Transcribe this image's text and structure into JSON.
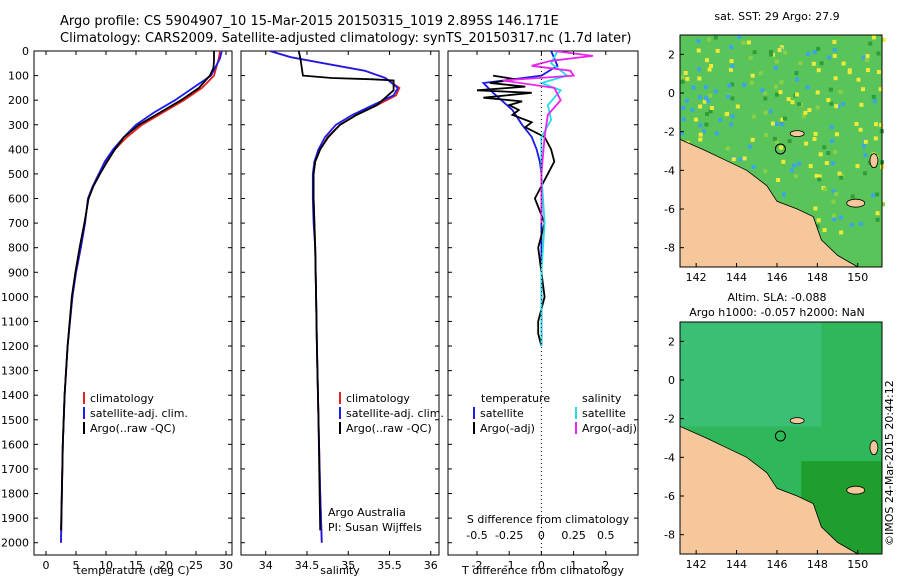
{
  "header": {
    "line1": "Argo profile: CS 5904907_10 15-Mar-2015 20150315_1019 2.895S 146.171E",
    "line2": "Climatology: CARS2009. Satellite-adjusted climatology: synTS_20150317.nc (1.7d later)"
  },
  "colors": {
    "climatology": "#e8211e",
    "satellite": "#1a1aee",
    "argo": "#000000",
    "sal_satellite": "#22dde8",
    "sal_argo": "#ee22ee",
    "land": "#f5c79a"
  },
  "depth_ticks": [
    "0",
    "100",
    "200",
    "300",
    "400",
    "500",
    "600",
    "700",
    "800",
    "900",
    "1000",
    "1100",
    "1200",
    "1300",
    "1400",
    "1500",
    "1600",
    "1700",
    "1800",
    "1900",
    "2000"
  ],
  "legend": {
    "climatology": "climatology",
    "satellite_adj": "satellite-adj. clim.",
    "argo": "Argo(..raw -QC)"
  },
  "panel3_legend": {
    "temperature": "temperature",
    "salinity": "salinity",
    "satellite_t": "satellite",
    "argo_t": "Argo(-adj)",
    "satellite_s": "satellite",
    "argo_s": "Argo(-adj)"
  },
  "credit": {
    "line1": "Argo Australia",
    "line2": "PI: Susan Wijffels"
  },
  "map_top": {
    "title": "sat. SST: 29 Argo: 27.9",
    "xticks": [
      "142",
      "144",
      "146",
      "148",
      "150"
    ],
    "yticks": [
      "2",
      "0",
      "-2",
      "-4",
      "-6",
      "-8"
    ]
  },
  "map_bottom": {
    "title1": "Altim. SLA: -0.088",
    "title2": "Argo h1000: -0.057 h2000: NaN",
    "xticks": [
      "142",
      "144",
      "146",
      "148",
      "150"
    ],
    "yticks": [
      "2",
      "0",
      "-2",
      "-4",
      "-6",
      "-8"
    ]
  },
  "watermark": "©IMOS 24-Mar-2015 20:44:12",
  "chart_data": [
    {
      "type": "line",
      "xlabel": "temperature (deg C)",
      "ylabel": "",
      "xlim": [
        -2,
        31
      ],
      "ylim": [
        2050,
        0
      ],
      "xticks": [
        "0",
        "5",
        "10",
        "15",
        "20",
        "25",
        "30"
      ],
      "series": [
        {
          "name": "climatology",
          "x": [
            29.0,
            28.8,
            28.0,
            26.0,
            23.0,
            19.5,
            16.0,
            13.5,
            11.5,
            10.0,
            8.8,
            7.8,
            7.0,
            6.5,
            5.8,
            5.0,
            4.4,
            3.6,
            3.1,
            2.8,
            2.5
          ],
          "y": [
            0,
            30,
            100,
            150,
            200,
            250,
            300,
            350,
            400,
            450,
            500,
            550,
            600,
            700,
            800,
            900,
            1000,
            1200,
            1400,
            1600,
            2000
          ]
        },
        {
          "name": "satellite-adj. clim.",
          "x": [
            29.3,
            29.0,
            27.5,
            24.5,
            21.5,
            18.0,
            15.0,
            13.0,
            11.2,
            9.8,
            8.8,
            7.8,
            7.0,
            6.5,
            5.8,
            5.0,
            4.4,
            3.6,
            3.1,
            2.8,
            2.5
          ],
          "y": [
            0,
            30,
            100,
            150,
            200,
            250,
            300,
            350,
            400,
            450,
            500,
            550,
            600,
            700,
            800,
            900,
            1000,
            1200,
            1400,
            1600,
            2000
          ]
        },
        {
          "name": "Argo(..raw -QC)",
          "x": [
            28.0,
            28.0,
            27.9,
            27.3,
            25.5,
            22.5,
            19.0,
            15.5,
            13.0,
            11.5,
            10.2,
            9.0,
            7.9,
            7.1,
            6.4,
            5.6,
            4.9,
            4.3,
            3.6,
            3.1,
            2.8,
            2.5
          ],
          "y": [
            0,
            40,
            70,
            100,
            150,
            200,
            250,
            300,
            350,
            400,
            450,
            500,
            550,
            600,
            700,
            800,
            900,
            1000,
            1200,
            1400,
            1600,
            1950
          ]
        }
      ]
    },
    {
      "type": "line",
      "xlabel": "salinity",
      "xlim": [
        33.7,
        36.1
      ],
      "ylim": [
        2050,
        0
      ],
      "xticks": [
        "34",
        "34.5",
        "35",
        "35.5",
        "36"
      ],
      "series": [
        {
          "name": "climatology",
          "x": [
            34.05,
            34.3,
            34.7,
            35.2,
            35.45,
            35.62,
            35.58,
            35.35,
            35.1,
            34.9,
            34.75,
            34.66,
            34.6,
            34.58,
            34.58,
            34.59,
            34.6,
            34.61,
            34.62,
            34.64,
            34.66,
            34.68
          ],
          "y": [
            0,
            25,
            50,
            80,
            110,
            150,
            180,
            220,
            260,
            300,
            350,
            400,
            450,
            500,
            600,
            700,
            800,
            1000,
            1200,
            1500,
            1800,
            2000
          ]
        },
        {
          "name": "satellite-adj. clim.",
          "x": [
            34.05,
            34.3,
            34.7,
            35.2,
            35.45,
            35.6,
            35.55,
            35.3,
            35.05,
            34.85,
            34.72,
            34.64,
            34.59,
            34.57,
            34.57,
            34.58,
            34.6,
            34.61,
            34.62,
            34.64,
            34.66,
            34.68
          ],
          "y": [
            0,
            25,
            50,
            80,
            110,
            150,
            180,
            220,
            260,
            300,
            350,
            400,
            450,
            500,
            600,
            700,
            800,
            1000,
            1200,
            1500,
            1800,
            2000
          ]
        },
        {
          "name": "Argo(..raw -QC)",
          "x": [
            34.4,
            34.42,
            34.45,
            34.8,
            35.3,
            35.55,
            35.55,
            35.35,
            35.1,
            34.9,
            34.76,
            34.66,
            34.6,
            34.58,
            34.58,
            34.59,
            34.6,
            34.61,
            34.62,
            34.64,
            34.66
          ],
          "y": [
            0,
            30,
            100,
            110,
            115,
            120,
            160,
            220,
            260,
            300,
            350,
            400,
            450,
            500,
            600,
            700,
            800,
            1000,
            1200,
            1500,
            1950
          ]
        }
      ]
    },
    {
      "type": "line",
      "xlabel": "T difference from climatology",
      "title_top": "S difference from climatology",
      "xlim": [
        -2.9,
        3.0
      ],
      "ylim": [
        2050,
        0
      ],
      "xticks": [
        "-2",
        "-1",
        "0",
        "1",
        "2"
      ],
      "top_xticks": [
        "-0.5",
        "-0.25",
        "0",
        "0.25",
        "0.5"
      ],
      "series": [
        {
          "name": "satellite",
          "x": [
            0.3,
            0.5,
            0.0,
            -1.8,
            -1.5,
            -0.9,
            -0.6,
            -0.3,
            -0.15,
            -0.05,
            0.0,
            0.0,
            0.0,
            0.0,
            0.0,
            0.0,
            0.0
          ],
          "y": [
            0,
            60,
            100,
            130,
            170,
            240,
            300,
            350,
            400,
            450,
            500,
            600,
            700,
            800,
            1000,
            1200,
            1200
          ]
        },
        {
          "name": "Argo(-adj)",
          "x": [
            -1.5,
            -0.8,
            -1.6,
            -0.5,
            -2.0,
            -0.3,
            -1.8,
            -0.6,
            -1.0,
            -0.7,
            -0.9,
            -0.3,
            -0.5,
            0.1,
            0.3,
            0.4,
            0.2,
            -0.2,
            0.1,
            -0.1,
            0.0,
            0.1,
            0.0,
            -0.1,
            -0.1,
            0.0
          ],
          "y": [
            100,
            115,
            130,
            145,
            160,
            170,
            190,
            205,
            220,
            240,
            260,
            290,
            310,
            350,
            400,
            450,
            500,
            600,
            700,
            800,
            900,
            1000,
            1050,
            1100,
            1150,
            1200
          ]
        },
        {
          "name": "satellite",
          "x": [
            0.5,
            0.3,
            0.8,
            0.0,
            0.6,
            0.2,
            0.3,
            0.0,
            0.0,
            0.1,
            0.0,
            0.0
          ],
          "y": [
            0,
            50,
            100,
            130,
            160,
            220,
            280,
            350,
            500,
            700,
            900,
            1200
          ]
        },
        {
          "name": "Argo(-adj)",
          "x": [
            0.4,
            1.6,
            0.3,
            -0.3,
            0.9,
            1.0,
            -1.2,
            0.4,
            0.6,
            0.2,
            0.1,
            0.0,
            0.0
          ],
          "y": [
            0,
            20,
            40,
            60,
            80,
            100,
            120,
            150,
            200,
            260,
            350,
            500,
            700
          ]
        }
      ]
    }
  ]
}
